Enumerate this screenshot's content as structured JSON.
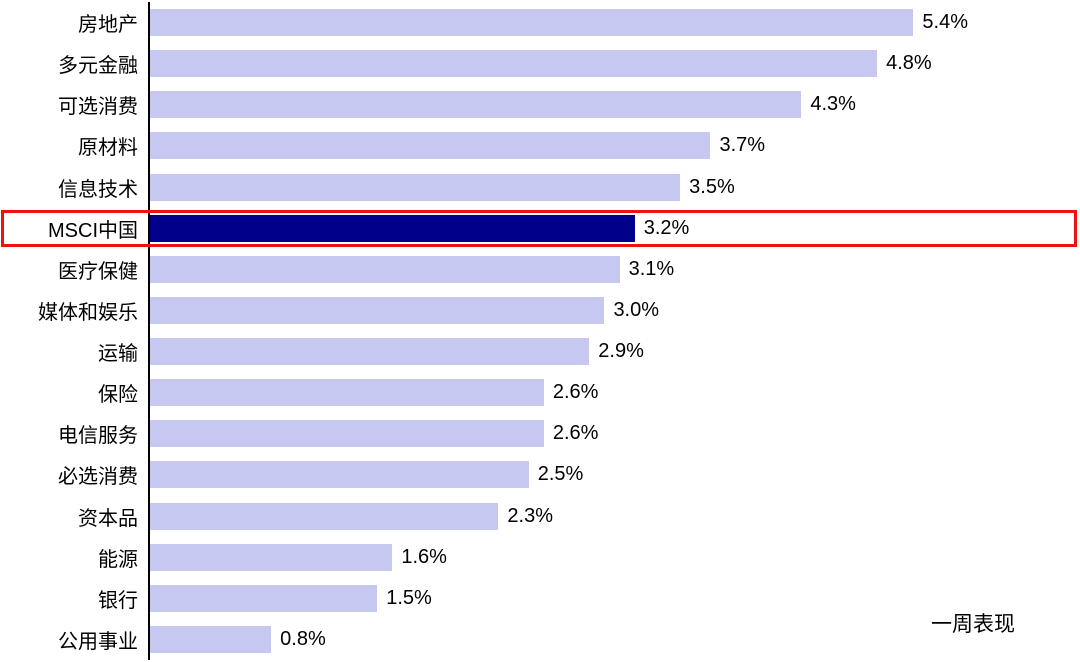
{
  "chart_data": {
    "type": "bar",
    "orientation": "horizontal",
    "title": "",
    "xlabel": "",
    "ylabel": "",
    "footnote_label": "一周表现",
    "categories": [
      "房地产",
      "多元金融",
      "可选消费",
      "原材料",
      "信息技术",
      "MSCI中国",
      "医疗保健",
      "媒体和娱乐",
      "运输",
      "保险",
      "电信服务",
      "必选消费",
      "资本品",
      "能源",
      "银行",
      "公用事业"
    ],
    "values": [
      5.4,
      4.8,
      4.3,
      3.7,
      3.5,
      3.2,
      3.1,
      3.0,
      2.9,
      2.6,
      2.6,
      2.5,
      2.3,
      1.6,
      1.5,
      0.8
    ],
    "labels": [
      "5.4%",
      "4.8%",
      "4.3%",
      "3.7%",
      "3.5%",
      "3.2%",
      "3.1%",
      "3.0%",
      "2.9%",
      "2.6%",
      "2.6%",
      "2.5%",
      "2.3%",
      "1.6%",
      "1.5%",
      "0.8%"
    ],
    "highlight_index": 5,
    "scale_max": 5.4,
    "xlim": [
      0,
      5.4
    ],
    "grid": false,
    "legend": "none",
    "bar_color": "#c6c8f2",
    "highlight_bar_color": "#00008b",
    "highlight_border_color": "#ee1111",
    "axis_color": "#000000"
  }
}
